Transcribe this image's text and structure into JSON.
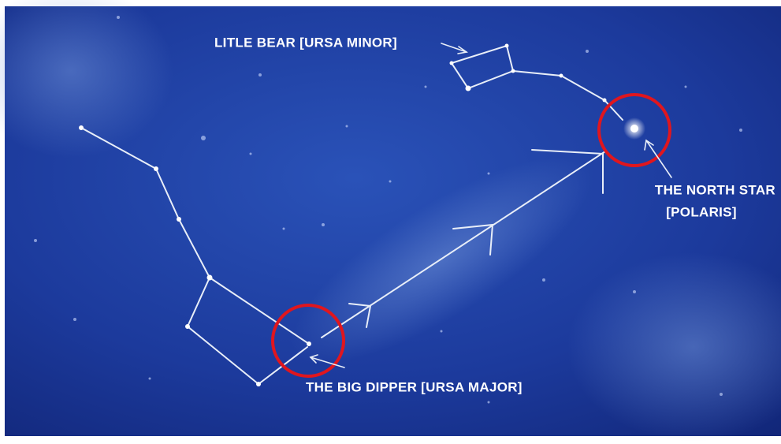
{
  "labels": {
    "little_bear": "LITLE BEAR [URSA MINOR]",
    "north_star": "THE NORTH STAR",
    "polaris": "[POLARIS]",
    "big_dipper": "THE BIG DIPPER [URSA MAJOR]"
  }
}
